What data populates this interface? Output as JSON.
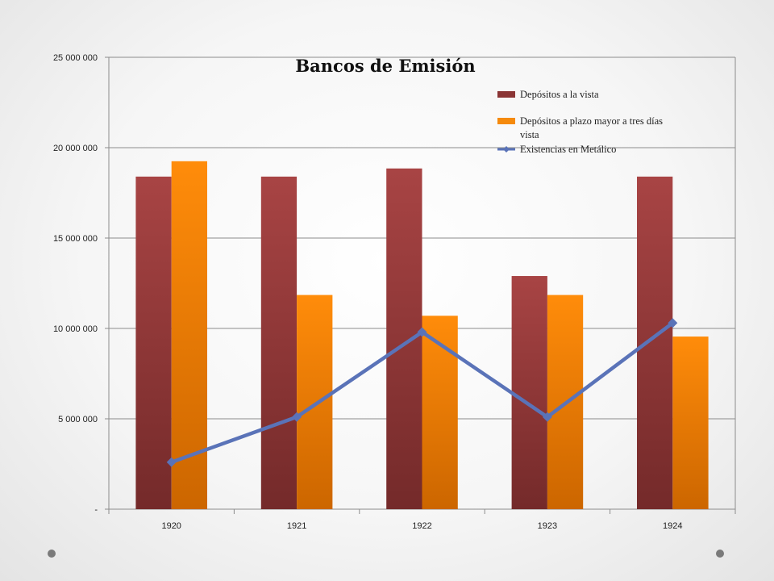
{
  "chart_data": {
    "type": "bar",
    "title": "Bancos de Emisión",
    "categories": [
      "1920",
      "1921",
      "1922",
      "1923",
      "1924"
    ],
    "series": [
      {
        "name": "Depósitos a la vista",
        "type": "bar",
        "color": "#8b3535",
        "values": [
          18400000,
          18400000,
          18850000,
          12900000,
          18400000
        ]
      },
      {
        "name": "Depósitos a plazo mayor a tres días vista",
        "type": "bar",
        "color": "#f58a0c",
        "values": [
          19250000,
          11850000,
          10700000,
          11850000,
          9550000
        ]
      },
      {
        "name": "Existencias en Metálico",
        "type": "line",
        "color": "#5a73b8",
        "values": [
          2600000,
          5100000,
          9800000,
          5100000,
          10300000
        ]
      }
    ],
    "yticks": [
      "-",
      "5 000 000",
      "10 000 000",
      "15 000 000",
      "20 000 000",
      "25 000 000"
    ],
    "ylim": [
      0,
      25000000
    ],
    "grid": true,
    "legend_position": "top-right"
  }
}
